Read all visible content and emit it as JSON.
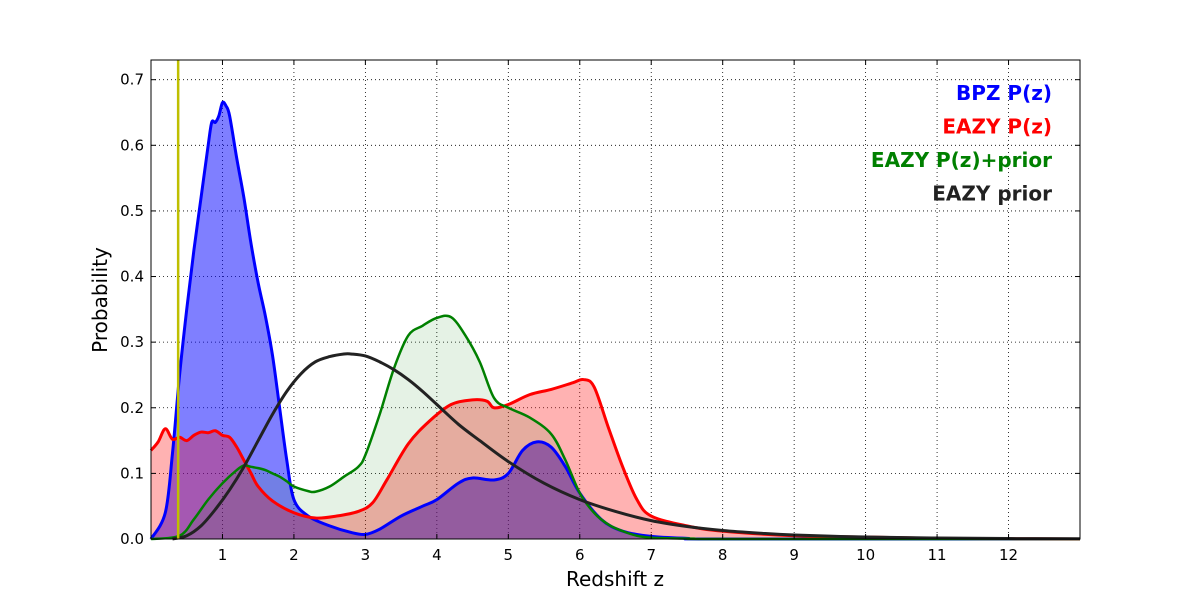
{
  "chart_data": {
    "type": "area",
    "xlabel": "Redshift z",
    "ylabel": "Probability",
    "xlim": [
      0,
      13
    ],
    "ylim": [
      0,
      0.73
    ],
    "x_ticks": [
      1,
      2,
      3,
      4,
      5,
      6,
      7,
      8,
      9,
      10,
      11,
      12
    ],
    "x_tick_labels": [
      "1",
      "2",
      "3",
      "4",
      "5",
      "6",
      "7",
      "8",
      "9",
      "10",
      "11",
      "12"
    ],
    "y_ticks": [
      0.0,
      0.1,
      0.2,
      0.3,
      0.4,
      0.5,
      0.6,
      0.7
    ],
    "y_tick_labels": [
      "0.0",
      "0.1",
      "0.2",
      "0.3",
      "0.4",
      "0.5",
      "0.6",
      "0.7"
    ],
    "grid": true,
    "legend_placement": "top-right",
    "vertical_marker": {
      "x": 0.38,
      "color": "#bfbf00"
    },
    "series": [
      {
        "name": "BPZ P(z)",
        "color": "#0000ff",
        "fill": "#0000ff",
        "fill_opacity": 0.5,
        "line_width": 3,
        "x": [
          0,
          0.2,
          0.3,
          0.4,
          0.5,
          0.6,
          0.7,
          0.8,
          0.85,
          0.9,
          0.95,
          1.0,
          1.05,
          1.1,
          1.2,
          1.3,
          1.4,
          1.5,
          1.6,
          1.7,
          1.8,
          1.9,
          2.0,
          2.2,
          2.5,
          2.8,
          3.0,
          3.2,
          3.5,
          3.8,
          4.0,
          4.3,
          4.5,
          4.8,
          5.0,
          5.2,
          5.4,
          5.6,
          5.8,
          6.0,
          6.3,
          6.6,
          7.0,
          7.5,
          8,
          13
        ],
        "y": [
          0,
          0.04,
          0.13,
          0.25,
          0.35,
          0.44,
          0.52,
          0.6,
          0.635,
          0.635,
          0.645,
          0.665,
          0.66,
          0.645,
          0.58,
          0.52,
          0.45,
          0.39,
          0.34,
          0.28,
          0.2,
          0.12,
          0.06,
          0.035,
          0.02,
          0.01,
          0.007,
          0.015,
          0.035,
          0.05,
          0.06,
          0.085,
          0.093,
          0.09,
          0.1,
          0.135,
          0.148,
          0.14,
          0.11,
          0.07,
          0.03,
          0.012,
          0.004,
          0.001,
          0,
          0
        ]
      },
      {
        "name": "EAZY P(z)",
        "color": "#ff0000",
        "fill": "#ff0000",
        "fill_opacity": 0.3,
        "line_width": 3,
        "x": [
          0,
          0.1,
          0.2,
          0.3,
          0.4,
          0.5,
          0.6,
          0.7,
          0.8,
          0.9,
          1.0,
          1.1,
          1.2,
          1.3,
          1.4,
          1.5,
          1.7,
          2.0,
          2.3,
          2.6,
          2.9,
          3.1,
          3.3,
          3.6,
          3.9,
          4.2,
          4.5,
          4.7,
          4.8,
          5.0,
          5.3,
          5.6,
          5.9,
          6.05,
          6.2,
          6.4,
          6.6,
          6.8,
          7.0,
          7.5,
          8.0,
          9.0,
          10.0,
          11.0,
          12.0,
          13.0
        ],
        "y": [
          0.135,
          0.148,
          0.168,
          0.152,
          0.155,
          0.15,
          0.158,
          0.163,
          0.162,
          0.165,
          0.158,
          0.155,
          0.14,
          0.12,
          0.1,
          0.08,
          0.058,
          0.04,
          0.032,
          0.035,
          0.042,
          0.055,
          0.09,
          0.145,
          0.18,
          0.205,
          0.212,
          0.21,
          0.2,
          0.205,
          0.22,
          0.228,
          0.238,
          0.243,
          0.232,
          0.17,
          0.11,
          0.06,
          0.035,
          0.02,
          0.012,
          0.005,
          0.003,
          0.001,
          0.0005,
          0
        ]
      },
      {
        "name": "EAZY P(z)+prior",
        "color": "#008000",
        "fill": "#008000",
        "fill_opacity": 0.1,
        "line_width": 2.5,
        "x": [
          0,
          0.4,
          0.6,
          0.8,
          1.0,
          1.2,
          1.3,
          1.4,
          1.5,
          1.6,
          1.7,
          1.8,
          1.9,
          2.0,
          2.2,
          2.3,
          2.5,
          2.7,
          2.9,
          3.0,
          3.2,
          3.4,
          3.6,
          3.8,
          4.0,
          4.2,
          4.4,
          4.6,
          4.8,
          5.0,
          5.3,
          5.6,
          5.8,
          6.0,
          6.2,
          6.4,
          6.6,
          6.8,
          7.0,
          7.3,
          7.6,
          8,
          13
        ],
        "y": [
          0,
          0.005,
          0.03,
          0.06,
          0.085,
          0.105,
          0.112,
          0.11,
          0.108,
          0.105,
          0.1,
          0.095,
          0.088,
          0.08,
          0.073,
          0.072,
          0.08,
          0.095,
          0.11,
          0.128,
          0.19,
          0.26,
          0.31,
          0.325,
          0.337,
          0.338,
          0.31,
          0.27,
          0.215,
          0.2,
          0.185,
          0.16,
          0.12,
          0.07,
          0.04,
          0.022,
          0.012,
          0.005,
          0.002,
          0.001,
          0.0005,
          0,
          0
        ]
      },
      {
        "name": "EAZY prior",
        "color": "#222222",
        "fill": "none",
        "fill_opacity": 0,
        "line_width": 3,
        "x": [
          0.3,
          0.5,
          0.7,
          0.9,
          1.1,
          1.3,
          1.5,
          1.7,
          1.9,
          2.1,
          2.3,
          2.5,
          2.7,
          2.8,
          3.0,
          3.2,
          3.4,
          3.6,
          3.8,
          4.0,
          4.3,
          4.6,
          5.0,
          5.5,
          6.0,
          6.5,
          7.0,
          7.5,
          8.0,
          8.5,
          9.0,
          10.0,
          11.0,
          12.0,
          13.0
        ],
        "y": [
          0.0,
          0.005,
          0.02,
          0.045,
          0.075,
          0.11,
          0.15,
          0.19,
          0.225,
          0.252,
          0.27,
          0.278,
          0.282,
          0.282,
          0.279,
          0.27,
          0.258,
          0.243,
          0.225,
          0.205,
          0.175,
          0.15,
          0.118,
          0.085,
          0.06,
          0.042,
          0.028,
          0.019,
          0.013,
          0.009,
          0.006,
          0.003,
          0.0015,
          0.0007,
          0.0003
        ]
      }
    ]
  }
}
